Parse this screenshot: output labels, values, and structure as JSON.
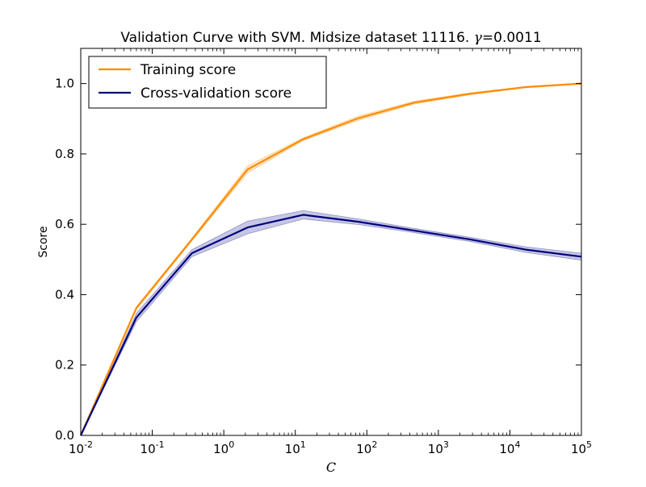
{
  "chart_data": {
    "type": "line",
    "title_prefix": "Validation Curve with SVM. Midsize dataset 11116. ",
    "title_gamma_symbol": "γ",
    "title_gamma_value": "=0.0011",
    "xlabel": "C",
    "ylabel": "Score",
    "xscale": "log",
    "xlim": [
      0.01,
      100000
    ],
    "ylim": [
      0.0,
      1.1
    ],
    "x_ticks": [
      {
        "base": "10",
        "exp": "-2",
        "value": 0.01
      },
      {
        "base": "10",
        "exp": "-1",
        "value": 0.1
      },
      {
        "base": "10",
        "exp": "0",
        "value": 1
      },
      {
        "base": "10",
        "exp": "1",
        "value": 10
      },
      {
        "base": "10",
        "exp": "2",
        "value": 100
      },
      {
        "base": "10",
        "exp": "3",
        "value": 1000
      },
      {
        "base": "10",
        "exp": "4",
        "value": 10000
      },
      {
        "base": "10",
        "exp": "5",
        "value": 100000
      }
    ],
    "y_ticks": [
      "0.0",
      "0.2",
      "0.4",
      "0.6",
      "0.8",
      "1.0"
    ],
    "grid": false,
    "legend_position": "top-left",
    "x": [
      0.01,
      0.0599,
      0.359,
      2.154,
      12.92,
      77.43,
      464.2,
      2783,
      16681,
      100000
    ],
    "series": [
      {
        "name": "Training score",
        "color": "#ff8c00",
        "values": [
          0.0,
          0.362,
          0.557,
          0.756,
          0.842,
          0.902,
          0.946,
          0.971,
          0.99,
          1.0
        ],
        "std": [
          0.0,
          0.004,
          0.004,
          0.01,
          0.004,
          0.006,
          0.004,
          0.003,
          0.002,
          0.001
        ]
      },
      {
        "name": "Cross-validation score",
        "color": "#000080",
        "values": [
          0.0,
          0.335,
          0.518,
          0.591,
          0.627,
          0.607,
          0.582,
          0.557,
          0.528,
          0.508
        ],
        "std": [
          0.0,
          0.012,
          0.01,
          0.018,
          0.012,
          0.008,
          0.006,
          0.006,
          0.008,
          0.01
        ]
      }
    ]
  }
}
